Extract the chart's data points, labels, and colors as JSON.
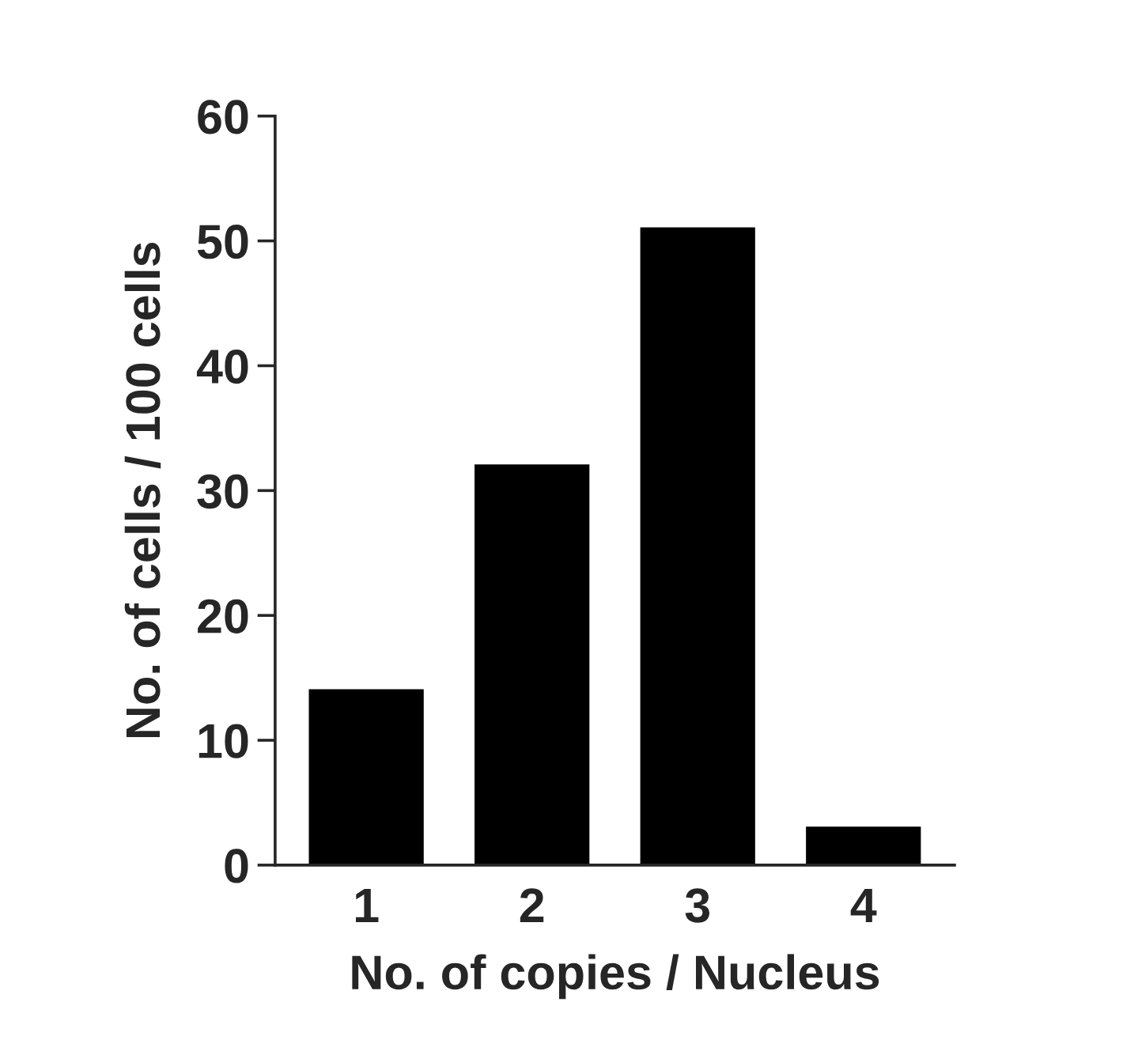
{
  "chart_data": {
    "type": "bar",
    "xlabel": "No. of copies / Nucleus",
    "ylabel": "No. of cells / 100 cells",
    "categories": [
      "1",
      "2",
      "3",
      "4"
    ],
    "values": [
      14,
      32,
      51,
      3
    ],
    "color": "#000000",
    "ylim": [
      0,
      60
    ],
    "yticks": [
      0,
      10,
      20,
      30,
      40,
      50,
      60
    ],
    "grid": false,
    "legend": false
  }
}
